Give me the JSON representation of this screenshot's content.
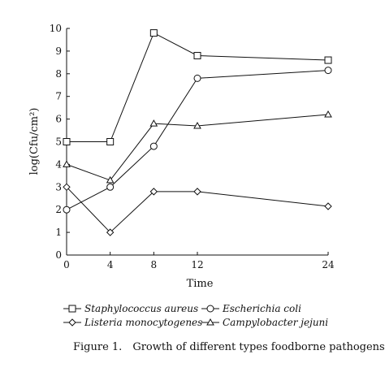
{
  "chart_data": {
    "type": "line",
    "x": [
      0,
      4,
      8,
      12,
      24
    ],
    "xticks": [
      "0",
      "4",
      "8",
      "12",
      "24"
    ],
    "yticks": [
      "0",
      "1",
      "2",
      "3",
      "4",
      "5",
      "6",
      "7",
      "8",
      "9",
      "10"
    ],
    "xlim": [
      0,
      24
    ],
    "ylim": [
      0,
      10
    ],
    "xlabel": "Time",
    "ylabel": "log(Cfu/cm²)",
    "grid": false,
    "legend_position": "bottom",
    "series": [
      {
        "name": "Staphylococcus aureus",
        "marker": "square",
        "values": [
          5.0,
          5.0,
          9.8,
          8.8,
          8.6
        ]
      },
      {
        "name": "Escherichia coli",
        "marker": "circle",
        "values": [
          2.0,
          3.0,
          4.8,
          7.8,
          8.15
        ]
      },
      {
        "name": "Listeria monocytogenes",
        "marker": "diamond",
        "values": [
          3.0,
          1.0,
          2.8,
          2.8,
          2.15
        ]
      },
      {
        "name": "Campylobacter jejuni",
        "marker": "triangle",
        "values": [
          4.0,
          3.3,
          5.8,
          5.7,
          6.2
        ]
      }
    ],
    "caption": "Figure 1. Growth of different types foodborne pathogens."
  }
}
